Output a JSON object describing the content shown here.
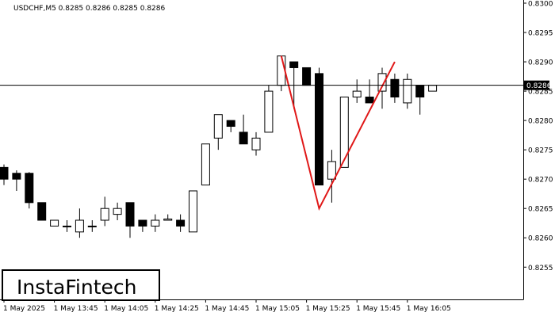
{
  "chart_data": {
    "type": "candlestick",
    "symbol_header": "USDCHF,M5  0.8285 0.8286 0.8285 0.8286",
    "current_price_label": "0.8286",
    "current_price": 0.8286,
    "watermark": "InstaFintech",
    "ylim": [
      0.82495,
      0.83
    ],
    "y_ticks": [
      {
        "value": 0.83,
        "label": "0.8300"
      },
      {
        "value": 0.8295,
        "label": "0.8295"
      },
      {
        "value": 0.829,
        "label": "0.8290"
      },
      {
        "value": 0.8285,
        "label": "0.8285"
      },
      {
        "value": 0.828,
        "label": "0.8280"
      },
      {
        "value": 0.8275,
        "label": "0.8275"
      },
      {
        "value": 0.827,
        "label": "0.8270"
      },
      {
        "value": 0.8265,
        "label": "0.8265"
      },
      {
        "value": 0.826,
        "label": "0.8260"
      },
      {
        "value": 0.8255,
        "label": "0.8255"
      }
    ],
    "x_ticks": [
      {
        "index": 0,
        "label": "1 May 2025"
      },
      {
        "index": 4,
        "label": "1 May 13:45"
      },
      {
        "index": 8,
        "label": "1 May 14:05"
      },
      {
        "index": 12,
        "label": "1 May 14:25"
      },
      {
        "index": 16,
        "label": "1 May 14:45"
      },
      {
        "index": 20,
        "label": "1 May 15:05"
      },
      {
        "index": 24,
        "label": "1 May 15:25"
      },
      {
        "index": 28,
        "label": "1 May 15:45"
      },
      {
        "index": 32,
        "label": "1 May 16:05"
      }
    ],
    "candles": [
      {
        "o": 0.8272,
        "h": 0.82725,
        "l": 0.8269,
        "c": 0.827
      },
      {
        "o": 0.8271,
        "h": 0.82715,
        "l": 0.8268,
        "c": 0.827
      },
      {
        "o": 0.8271,
        "h": 0.82712,
        "l": 0.8265,
        "c": 0.8266
      },
      {
        "o": 0.8266,
        "h": 0.8266,
        "l": 0.8263,
        "c": 0.8263
      },
      {
        "o": 0.8262,
        "h": 0.8263,
        "l": 0.8262,
        "c": 0.8263
      },
      {
        "o": 0.8262,
        "h": 0.8263,
        "l": 0.8261,
        "c": 0.8262
      },
      {
        "o": 0.8261,
        "h": 0.8265,
        "l": 0.826,
        "c": 0.8263
      },
      {
        "o": 0.8262,
        "h": 0.8263,
        "l": 0.8261,
        "c": 0.8262
      },
      {
        "o": 0.8263,
        "h": 0.8267,
        "l": 0.8262,
        "c": 0.8265
      },
      {
        "o": 0.8264,
        "h": 0.8266,
        "l": 0.8263,
        "c": 0.8265
      },
      {
        "o": 0.8266,
        "h": 0.8266,
        "l": 0.826,
        "c": 0.8262
      },
      {
        "o": 0.8263,
        "h": 0.8263,
        "l": 0.8261,
        "c": 0.8262
      },
      {
        "o": 0.8262,
        "h": 0.8264,
        "l": 0.8261,
        "c": 0.8263
      },
      {
        "o": 0.8263,
        "h": 0.8264,
        "l": 0.8263,
        "c": 0.82632
      },
      {
        "o": 0.8263,
        "h": 0.8264,
        "l": 0.8261,
        "c": 0.8262
      },
      {
        "o": 0.8261,
        "h": 0.8268,
        "l": 0.8261,
        "c": 0.8268
      },
      {
        "o": 0.8269,
        "h": 0.8276,
        "l": 0.8269,
        "c": 0.8276
      },
      {
        "o": 0.8277,
        "h": 0.8281,
        "l": 0.8275,
        "c": 0.8281
      },
      {
        "o": 0.828,
        "h": 0.828,
        "l": 0.8278,
        "c": 0.8279
      },
      {
        "o": 0.8278,
        "h": 0.8281,
        "l": 0.8276,
        "c": 0.8276
      },
      {
        "o": 0.8275,
        "h": 0.8278,
        "l": 0.8274,
        "c": 0.8277
      },
      {
        "o": 0.8278,
        "h": 0.8286,
        "l": 0.8278,
        "c": 0.8285
      },
      {
        "o": 0.8286,
        "h": 0.8291,
        "l": 0.8285,
        "c": 0.8291
      },
      {
        "o": 0.829,
        "h": 0.829,
        "l": 0.8282,
        "c": 0.8289
      },
      {
        "o": 0.8289,
        "h": 0.8289,
        "l": 0.8286,
        "c": 0.8286
      },
      {
        "o": 0.8288,
        "h": 0.8289,
        "l": 0.8269,
        "c": 0.8269
      },
      {
        "o": 0.827,
        "h": 0.8275,
        "l": 0.8266,
        "c": 0.8273
      },
      {
        "o": 0.8272,
        "h": 0.8284,
        "l": 0.8272,
        "c": 0.8284
      },
      {
        "o": 0.8284,
        "h": 0.8287,
        "l": 0.8283,
        "c": 0.8285
      },
      {
        "o": 0.8284,
        "h": 0.8287,
        "l": 0.8283,
        "c": 0.8283
      },
      {
        "o": 0.8285,
        "h": 0.8289,
        "l": 0.8282,
        "c": 0.8288
      },
      {
        "o": 0.8287,
        "h": 0.8288,
        "l": 0.8283,
        "c": 0.8284
      },
      {
        "o": 0.8283,
        "h": 0.8288,
        "l": 0.8282,
        "c": 0.8287
      },
      {
        "o": 0.8286,
        "h": 0.8286,
        "l": 0.8281,
        "c": 0.8284
      },
      {
        "o": 0.8285,
        "h": 0.8286,
        "l": 0.8285,
        "c": 0.8286
      }
    ],
    "pattern_polyline": [
      {
        "index": 22,
        "price": 0.8291
      },
      {
        "index": 25,
        "price": 0.8265
      },
      {
        "index": 31,
        "price": 0.829
      }
    ],
    "colors": {
      "pattern_line": "#e01818",
      "candle_outline": "#000000",
      "bull_fill": "#ffffff",
      "bear_fill": "#000000",
      "price_line": "#000000",
      "price_label_bg": "#000000",
      "price_label_text": "#ffffff"
    }
  }
}
